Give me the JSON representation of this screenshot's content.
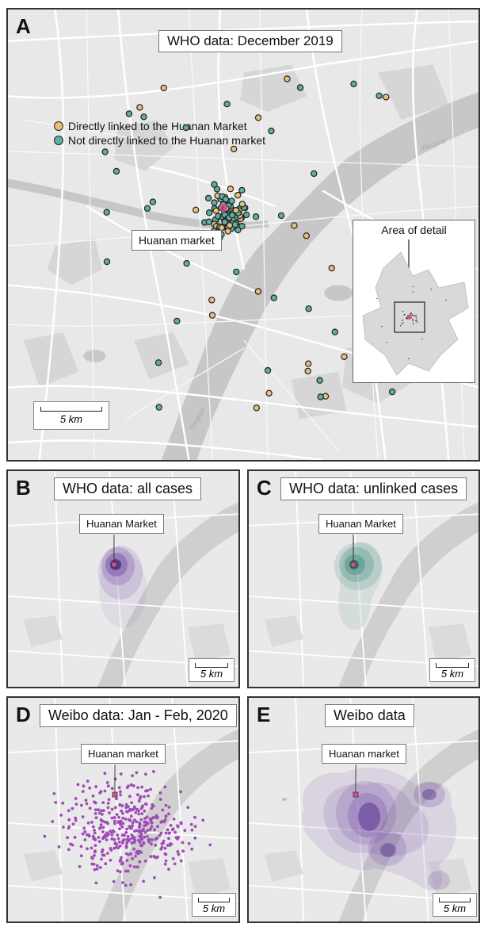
{
  "panels": {
    "a": {
      "letter": "A",
      "title": "WHO data: December 2019",
      "legend": [
        {
          "label": "Directly linked to the Huanan Market",
          "color": "#e6c278"
        },
        {
          "label": "Not directly linked to the Huanan market",
          "color": "#5fae9f"
        }
      ],
      "market_label": "Huanan market",
      "inset_title": "Area of detail",
      "river_label_1": "Yangtze",
      "river_label_2": "Yangtze",
      "scale": "5 km"
    },
    "b": {
      "letter": "B",
      "title": "WHO data: all cases",
      "market_label": "Huanan Market",
      "scale": "5 km"
    },
    "c": {
      "letter": "C",
      "title": "WHO data: unlinked cases",
      "market_label": "Huanan Market",
      "scale": "5 km"
    },
    "d": {
      "letter": "D",
      "title": "Weibo data: Jan - Feb, 2020",
      "market_label": "Huanan market",
      "scale": "5 km"
    },
    "e": {
      "letter": "E",
      "title": "Weibo data",
      "market_label": "Huanan market",
      "scale": "5 km"
    }
  },
  "colors": {
    "linked": "#e6c278",
    "unlinked": "#5fae9f",
    "market": "#d8508a",
    "purple_density": "#6b3fa0",
    "green_density": "#3f8d7c",
    "weibo_dot": "#a04ab8"
  }
}
